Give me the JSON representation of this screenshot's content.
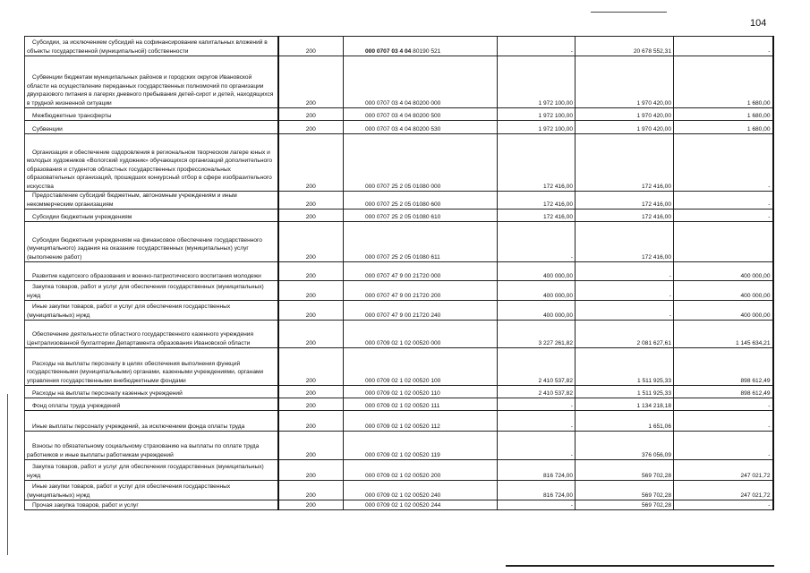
{
  "page_number": "104",
  "rows": [
    {
      "name": "Субсидии, за исключением субсидий на софинансирование капитальных вложений в объекты государственной (муниципальной) собственности",
      "code": "200",
      "csr_bold": "000 0707 03 4 04",
      "csr_rest": " 80190 521",
      "approved": "-",
      "executed": "20 678 552,31",
      "unexecuted": "-"
    },
    {
      "name": "Субвенции бюджетам муниципальных районов и городских округов Ивановской области на осуществление переданных государственных полномочий по организации двухразового питания в лагерях дневного пребывания детей-сирот и детей, находящихся в трудной жизненной ситуации",
      "code": "200",
      "csr_bold": "",
      "csr_rest": "000 0707 03 4 04 80200 000",
      "approved": "1 972 100,00",
      "executed": "1 970 420,00",
      "unexecuted": "1 680,00"
    },
    {
      "name": "Межбюджетные трансферты",
      "code": "200",
      "csr_bold": "",
      "csr_rest": "000 0707 03 4 04 80200 500",
      "approved": "1 972 100,00",
      "executed": "1 970 420,00",
      "unexecuted": "1 680,00"
    },
    {
      "name": "Субвенции",
      "code": "200",
      "csr_bold": "",
      "csr_rest": "000 0707 03 4 04 80200 530",
      "approved": "1 972 100,00",
      "executed": "1 970 420,00",
      "unexecuted": "1 680,00"
    },
    {
      "name": "Организация и обеспечение оздоровления в региональном творческом лагере юных и молодых художников «Вологский художник» обучающихся организаций дополнительного образования и студентов областных государственных профессиональных образовательных организаций, прошедших конкурсный отбор в сфере изобразительного искусства",
      "code": "200",
      "csr_bold": "",
      "csr_rest": "000 0707 25 2 05 01080 000",
      "approved": "172 416,00",
      "executed": "172 416,00",
      "unexecuted": "-"
    },
    {
      "name": "Предоставление субсидий бюджетным, автономным учреждениям и иным некоммерческим организациям",
      "code": "200",
      "csr_bold": "",
      "csr_rest": "000 0707 25 2 05 01080 600",
      "approved": "172 416,00",
      "executed": "172 416,00",
      "unexecuted": "-"
    },
    {
      "name": "Субсидии бюджетным учреждениям",
      "code": "200",
      "csr_bold": "",
      "csr_rest": "000 0707 25 2 05 01080 610",
      "approved": "172 416,00",
      "executed": "172 416,00",
      "unexecuted": "-"
    },
    {
      "name": "Субсидии бюджетным учреждениям на финансовое обеспечение государственного (муниципального) задания на оказание государственных (муниципальных) услуг (выполнение работ)",
      "code": "200",
      "csr_bold": "",
      "csr_rest": "000 0707 25 2 05 01080 611",
      "approved": "-",
      "executed": "172 416,00",
      "unexecuted": ""
    },
    {
      "name": "Развитие кадетского образования и военно-патриотического воспитания молодежи",
      "code": "200",
      "csr_bold": "",
      "csr_rest": "000 0707 47 9 00 21720 000",
      "approved": "400 000,00",
      "executed": "-",
      "unexecuted": "400 000,00"
    },
    {
      "name": "Закупка товаров, работ и услуг для обеспечения государственных (муниципальных) нужд",
      "code": "200",
      "csr_bold": "",
      "csr_rest": "000 0707 47 9 00 21720 200",
      "approved": "400 000,00",
      "executed": "-",
      "unexecuted": "400 000,00"
    },
    {
      "name": "Иные закупки товаров, работ и услуг для обеспечения государственных (муниципальных) нужд",
      "code": "200",
      "csr_bold": "",
      "csr_rest": "000 0707 47 9 00 21720 240",
      "approved": "400 000,00",
      "executed": "-",
      "unexecuted": "400 000,00"
    },
    {
      "name": "Обеспечение деятельности областного государственного казенного учреждения Централизованной бухгалтерии Департамента образования Ивановской области",
      "code": "200",
      "csr_bold": "",
      "csr_rest": "000 0709 02 1 02 00520 000",
      "approved": "3 227 261,82",
      "executed": "2 081 627,61",
      "unexecuted": "1 145 634,21"
    },
    {
      "name": "Расходы на выплаты персоналу в целях обеспечения выполнения функций государственными (муниципальными) органами, казенными учреждениями, органами управления государственными внебюджетными фондами",
      "code": "200",
      "csr_bold": "",
      "csr_rest": "000 0709 02 1 02 00520 100",
      "approved": "2 410 537,82",
      "executed": "1 511 925,33",
      "unexecuted": "898 612,49"
    },
    {
      "name": "Расходы на выплаты персоналу казенных учреждений",
      "code": "200",
      "csr_bold": "",
      "csr_rest": "000 0709 02 1 02 00520 110",
      "approved": "2 410 537,82",
      "executed": "1 511 925,33",
      "unexecuted": "898 612,49"
    },
    {
      "name": "Фонд оплаты труда учреждений",
      "code": "200",
      "csr_bold": "",
      "csr_rest": "000 0709 02 1 02 00520 111",
      "approved": "-",
      "executed": "1 134 218,18",
      "unexecuted": "-"
    },
    {
      "name": "Иные выплаты персоналу учреждений, за исключением фонда оплаты труда",
      "code": "200",
      "csr_bold": "",
      "csr_rest": "000 0709 02 1 02 00520 112",
      "approved": "-",
      "executed": "1 651,06",
      "unexecuted": "-"
    },
    {
      "name": "Взносы по обязательному социальному страхованию на выплаты по оплате труда работников и иные выплаты работникам учреждений",
      "code": "200",
      "csr_bold": "",
      "csr_rest": "000 0709 02 1 02 00520 119",
      "approved": "-",
      "executed": "376 056,09",
      "unexecuted": "-"
    },
    {
      "name": "Закупка товаров, работ и услуг для обеспечения государственных (муниципальных) нужд",
      "code": "200",
      "csr_bold": "",
      "csr_rest": "000 0709 02 1 02 00520 200",
      "approved": "816 724,00",
      "executed": "569 702,28",
      "unexecuted": "247 021,72"
    },
    {
      "name": "Иные закупки товаров, работ и услуг для обеспечения государственных (муниципальных) нужд",
      "code": "200",
      "csr_bold": "",
      "csr_rest": "000 0709 02 1 02 00520 240",
      "approved": "816 724,00",
      "executed": "569 702,28",
      "unexecuted": "247 021,72"
    },
    {
      "name": "Прочая закупка товаров, работ и услуг",
      "code": "200",
      "csr_bold": "",
      "csr_rest": "000 0709 02 1 02 00520 244",
      "approved": "-",
      "executed": "569 702,28",
      "unexecuted": "-"
    }
  ]
}
